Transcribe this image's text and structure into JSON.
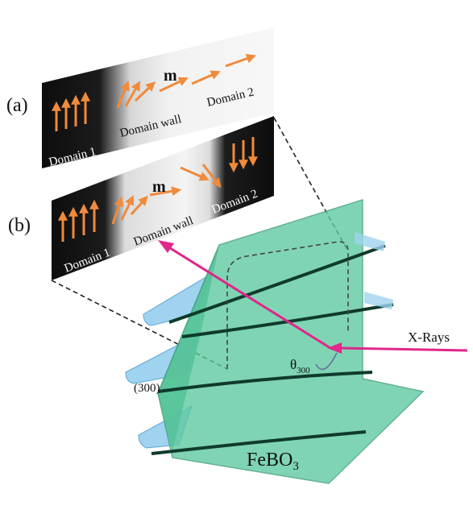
{
  "panels": {
    "a": {
      "label": "(a)",
      "domain1": "Domain 1",
      "wall": "Domain wall",
      "domain2": "Domain 2",
      "m": "m"
    },
    "b": {
      "label": "(b)",
      "domain1": "Domain 1",
      "wall": "Domain wall",
      "domain2": "Domain 2",
      "m": "m"
    }
  },
  "crystal": {
    "name_main": "FeBO",
    "name_sub": "3",
    "plane": "(300)",
    "angle_main": "θ",
    "angle_sub": "300"
  },
  "beam": {
    "label": "X-Rays"
  },
  "colors": {
    "crystal": "#5cc9a0",
    "plane": "#9fd3ef",
    "beam": "#e0278a",
    "arrow": "#f08a3c",
    "domain": "#141414"
  }
}
